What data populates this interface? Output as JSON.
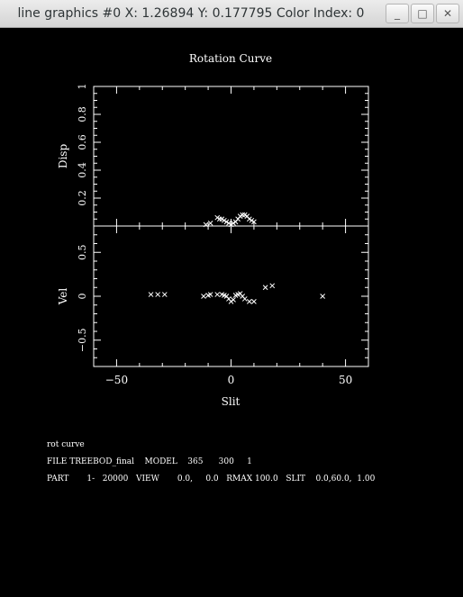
{
  "window": {
    "title": "line graphics #0 X: 1.26894 Y: 0.177795 Color Index: 0",
    "minimize_glyph": "_",
    "maximize_glyph": "□",
    "close_glyph": "✕"
  },
  "colors": {
    "background": "#000000",
    "foreground": "#ffffff"
  },
  "chart_data": [
    {
      "type": "scatter",
      "title": "Rotation Curve",
      "xlabel": "",
      "ylabel": "Disp",
      "xlim": [
        -60,
        60
      ],
      "ylim": [
        0,
        1
      ],
      "yticks": [
        0.2,
        0.4,
        0.6,
        0.8,
        1
      ],
      "ytick_labels": [
        "0.2",
        "0.4",
        "0.6",
        "0.8",
        "1"
      ],
      "marker": "x",
      "points": [
        [
          -11,
          0.01
        ],
        [
          -9,
          0.02
        ],
        [
          -6,
          0.06
        ],
        [
          -5,
          0.05
        ],
        [
          -4,
          0.05
        ],
        [
          -3,
          0.04
        ],
        [
          -2,
          0.03
        ],
        [
          -1,
          0.02
        ],
        [
          0,
          0.01
        ],
        [
          1,
          0.02
        ],
        [
          2,
          0.03
        ],
        [
          3,
          0.05
        ],
        [
          4,
          0.07
        ],
        [
          5,
          0.08
        ],
        [
          6,
          0.08
        ],
        [
          7,
          0.07
        ],
        [
          8,
          0.05
        ],
        [
          9,
          0.04
        ],
        [
          10,
          0.03
        ]
      ]
    },
    {
      "type": "scatter",
      "xlabel": "Slit",
      "ylabel": "Vel",
      "xlim": [
        -60,
        60
      ],
      "ylim": [
        -0.8,
        0.8
      ],
      "xticks": [
        -50,
        0,
        50
      ],
      "xtick_labels": [
        "−50",
        "0",
        "50"
      ],
      "yticks": [
        -0.5,
        0,
        0.5
      ],
      "ytick_labels": [
        "−0.5",
        "0",
        "0.5"
      ],
      "marker": "x",
      "points": [
        [
          -35,
          0.02
        ],
        [
          -32,
          0.02
        ],
        [
          -29,
          0.02
        ],
        [
          -12,
          0.0
        ],
        [
          -10,
          0.01
        ],
        [
          -9,
          0.02
        ],
        [
          -6,
          0.02
        ],
        [
          -4,
          0.02
        ],
        [
          -3,
          0.01
        ],
        [
          -2,
          0.0
        ],
        [
          -1,
          -0.03
        ],
        [
          0,
          -0.06
        ],
        [
          1,
          -0.04
        ],
        [
          2,
          0.01
        ],
        [
          3,
          0.02
        ],
        [
          4,
          0.03
        ],
        [
          5,
          0.0
        ],
        [
          6,
          -0.03
        ],
        [
          8,
          -0.06
        ],
        [
          10,
          -0.06
        ],
        [
          15,
          0.1
        ],
        [
          18,
          0.12
        ],
        [
          40,
          0.0
        ]
      ]
    }
  ],
  "info": {
    "line1": "rot curve",
    "line2": "FILE TREEBOD_final    MODEL    365      300     1",
    "line3": "PART       1-   20000   VIEW       0.0,     0.0   RMAX 100.0   SLIT    0.0,60.0,  1.00"
  }
}
